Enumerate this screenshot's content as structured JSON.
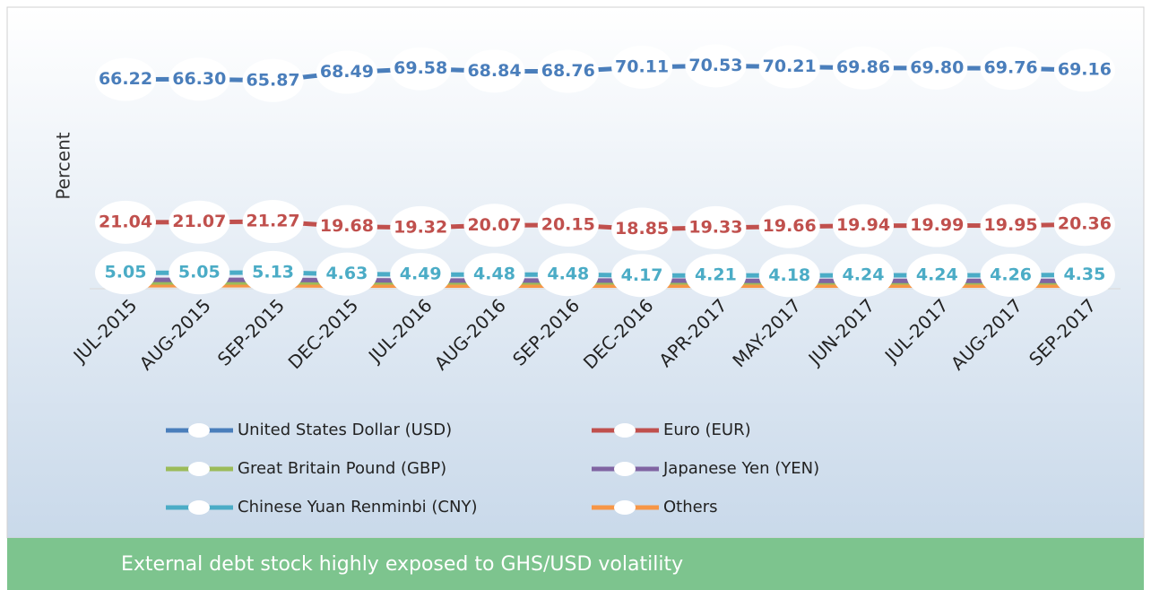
{
  "chart_data": {
    "type": "line",
    "y_label": "Percent",
    "footer": "External debt stock highly exposed to GHS/USD volatility",
    "categories": [
      "JUL-2015",
      "AUG-2015",
      "SEP-2015",
      "DEC-2015",
      "JUL-2016",
      "AUG-2016",
      "SEP-2016",
      "DEC-2016",
      "APR-2017",
      "MAY-2017",
      "JUN-2017",
      "JUL-2017",
      "AUG-2017",
      "SEP-2017"
    ],
    "ylim": [
      0,
      80
    ],
    "series": [
      {
        "name": "Others",
        "color": "#f79646",
        "values": [
          1.1,
          1.1,
          1.1,
          1.0,
          1.0,
          1.0,
          1.0,
          1.0,
          1.0,
          1.0,
          1.0,
          1.0,
          1.0,
          1.0
        ]
      },
      {
        "name": "Great Britain Pound (GBP)",
        "color": "#9bbb59",
        "values": [
          2.0,
          2.0,
          2.0,
          2.0,
          2.0,
          2.0,
          2.0,
          2.0,
          2.0,
          2.0,
          2.0,
          2.0,
          2.0,
          2.0
        ]
      },
      {
        "name": "Japanese Yen (YEN)",
        "color": "#8064a2",
        "values": [
          2.8,
          2.8,
          2.8,
          2.7,
          2.6,
          2.6,
          2.6,
          2.6,
          2.5,
          2.5,
          2.5,
          2.5,
          2.5,
          2.5
        ]
      },
      {
        "name": "Chinese Yuan Renminbi (CNY)",
        "color": "#4bacc6",
        "values": [
          5.05,
          5.05,
          5.13,
          4.63,
          4.49,
          4.48,
          4.48,
          4.17,
          4.21,
          4.18,
          4.24,
          4.24,
          4.26,
          4.35
        ],
        "value_labels": [
          "5.05",
          "5.05",
          "5.13",
          "4.63",
          "4.49",
          "4.48",
          "4.48",
          "4.17",
          "4.21",
          "4.18",
          "4.24",
          "4.24",
          "4.26",
          "4.35"
        ]
      },
      {
        "name": "Euro (EUR)",
        "color": "#c0504d",
        "values": [
          21.04,
          21.07,
          21.27,
          19.68,
          19.32,
          20.07,
          20.15,
          18.85,
          19.33,
          19.66,
          19.94,
          19.99,
          19.95,
          20.36
        ],
        "value_labels": [
          "21.04",
          "21.07",
          "21.27",
          "19.68",
          "19.32",
          "20.07",
          "20.15",
          "18.85",
          "19.33",
          "19.66",
          "19.94",
          "19.99",
          "19.95",
          "20.36"
        ]
      },
      {
        "name": "United States Dollar (USD)",
        "color": "#4a7ebb",
        "values": [
          66.22,
          66.3,
          65.87,
          68.49,
          69.58,
          68.84,
          68.76,
          70.11,
          70.53,
          70.21,
          69.86,
          69.8,
          69.76,
          69.16
        ],
        "value_labels": [
          "66.22",
          "66.30",
          "65.87",
          "68.49",
          "69.58",
          "68.84",
          "68.76",
          "70.11",
          "70.53",
          "70.21",
          "69.86",
          "69.80",
          "69.76",
          "69.16"
        ]
      }
    ]
  }
}
